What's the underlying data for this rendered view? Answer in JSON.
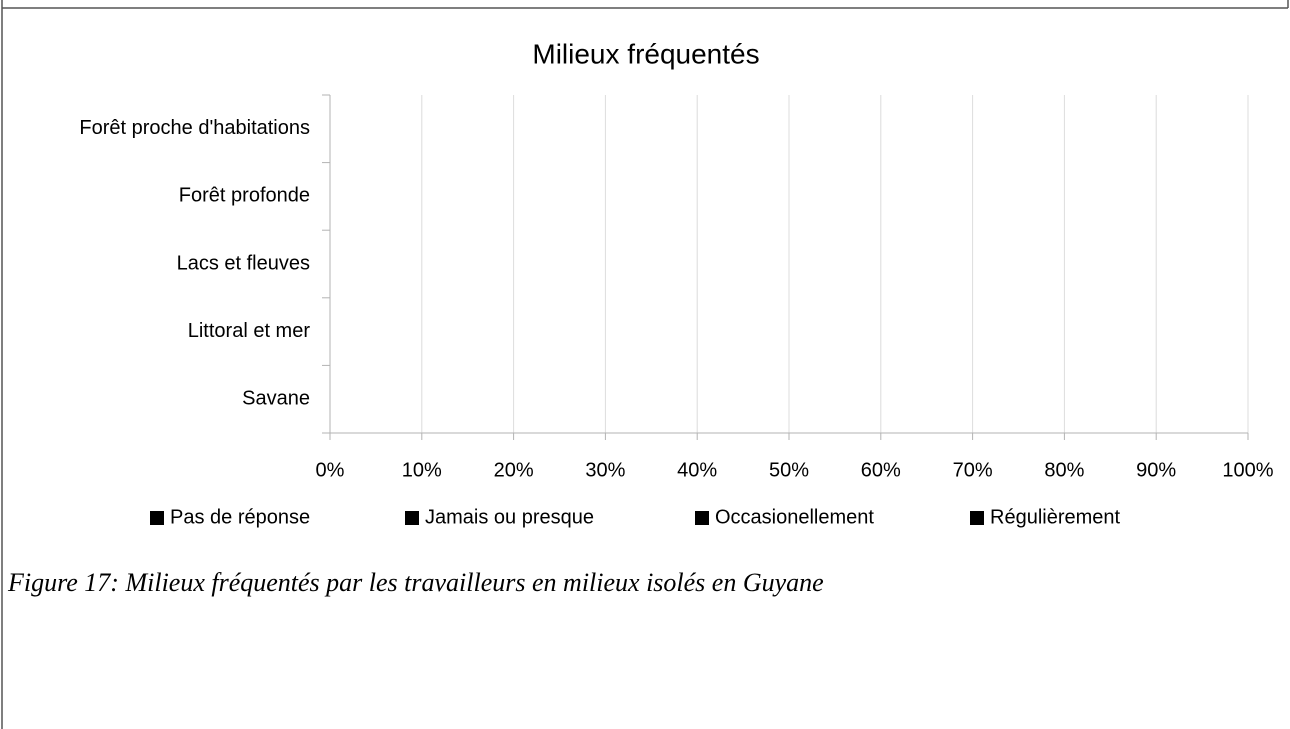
{
  "chart_data": {
    "type": "stacked_bar_horizontal",
    "title": "Milieux fréquentés",
    "categories": [
      "Forêt proche d'habitations",
      "Forêt profonde",
      "Lacs et fleuves",
      "Littoral et mer",
      "Savane"
    ],
    "series": [
      {
        "name": "Pas de réponse",
        "color": "#000000",
        "values": [
          null,
          null,
          null,
          null,
          null
        ]
      },
      {
        "name": "Jamais ou presque",
        "color": "#000000",
        "values": [
          null,
          null,
          null,
          null,
          null
        ]
      },
      {
        "name": "Occasionellement",
        "color": "#000000",
        "values": [
          null,
          null,
          null,
          null,
          null
        ]
      },
      {
        "name": "Régulièrement",
        "color": "#000000",
        "values": [
          null,
          null,
          null,
          null,
          null
        ]
      }
    ],
    "xlim": [
      0,
      100
    ],
    "xticks": [
      {
        "value": 0,
        "label": "0%"
      },
      {
        "value": 10,
        "label": "10%"
      },
      {
        "value": 20,
        "label": "20%"
      },
      {
        "value": 30,
        "label": "30%"
      },
      {
        "value": 40,
        "label": "40%"
      },
      {
        "value": 50,
        "label": "50%"
      },
      {
        "value": 60,
        "label": "60%"
      },
      {
        "value": 70,
        "label": "70%"
      },
      {
        "value": 80,
        "label": "80%"
      },
      {
        "value": 90,
        "label": "90%"
      },
      {
        "value": 100,
        "label": "100%"
      }
    ],
    "grid": true,
    "legend": "bottom"
  },
  "caption": "Figure 17: Milieux fréquentés par les travailleurs en milieux isolés en Guyane"
}
